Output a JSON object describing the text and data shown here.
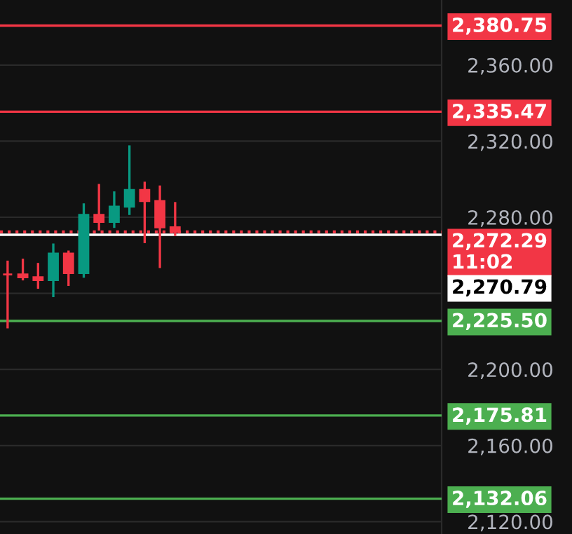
{
  "chart_data": {
    "type": "candlestick",
    "categories": [
      null,
      null,
      null,
      null,
      null,
      null,
      null,
      null,
      null,
      null,
      null,
      null,
      null,
      null,
      null,
      null,
      null,
      null,
      null,
      null,
      null,
      null,
      null,
      null,
      null,
      null,
      null,
      null,
      null
    ],
    "ohlc": [
      [
        2249.9,
        2257.2,
        2221.6,
        2249.9
      ],
      [
        2249.9,
        2258.2,
        2246.8,
        2248.5
      ],
      [
        2248.5,
        2256.0,
        2242.4,
        2247.0
      ],
      [
        2247.0,
        2266.2,
        2238.0,
        2260.9
      ],
      [
        2260.9,
        2262.5,
        2243.9,
        2250.7
      ],
      [
        2250.7,
        2287.3,
        2248.2,
        2281.2
      ],
      [
        2281.2,
        2297.5,
        2273.0,
        2277.6
      ],
      [
        2277.6,
        2293.6,
        2274.4,
        2285.6
      ],
      [
        2285.6,
        2317.8,
        2281.2,
        2294.3
      ],
      [
        2294.3,
        2298.7,
        2266.4,
        2288.5
      ],
      [
        2288.5,
        2296.7,
        2253.3,
        2274.7
      ],
      [
        2274.7,
        2288.0,
        2270.2,
        2272.29
      ],
      null,
      null,
      null,
      null,
      null,
      null,
      null,
      null,
      null,
      null,
      null,
      null,
      null,
      null,
      null,
      null,
      null
    ],
    "colors": [
      "#f23645",
      "#f23645",
      "#f23645",
      "#089981",
      "#f23645",
      "#089981",
      "#f23645",
      "#089981",
      "#089981",
      "#f23645",
      "#f23645",
      "#f23645",
      null,
      null,
      null,
      null,
      null,
      null,
      null,
      null,
      null,
      null,
      null,
      null,
      null,
      null,
      null,
      null,
      null
    ],
    "ylim": [
      2113.5,
      2394.2
    ],
    "yticks": [
      {
        "value": 2120,
        "label": "2,120.00"
      },
      {
        "value": 2160,
        "label": "2,160.00"
      },
      {
        "value": 2200,
        "label": "2,200.00"
      },
      {
        "value": 2240,
        "label": null
      },
      {
        "value": 2280,
        "label": "2,280.00"
      },
      {
        "value": 2320,
        "label": "2,320.00"
      },
      {
        "value": 2360,
        "label": "2,360.00"
      }
    ],
    "grid": "y",
    "tick_labels": "y",
    "ref_lines": [
      {
        "axis": "y",
        "value": 2380.75,
        "label": "2,380.75",
        "color": "#f23645",
        "line_style": "solid"
      },
      {
        "axis": "y",
        "value": 2335.47,
        "label": "2,335.47",
        "color": "#f23645",
        "line_style": "solid"
      },
      {
        "axis": "y",
        "value": 2272.29,
        "label": "2,272.29\n11:02",
        "color": "#f23645",
        "line_style": "dotted"
      },
      {
        "axis": "y",
        "value": 2270.79,
        "label": "2,270.79",
        "color": "#ffffff",
        "line_style": "solid"
      },
      {
        "axis": "y",
        "value": 2225.5,
        "label": "2,225.50",
        "color": "#4caf50",
        "line_style": "solid"
      },
      {
        "axis": "y",
        "value": 2175.81,
        "label": "2,175.81",
        "color": "#4caf50",
        "line_style": "solid"
      },
      {
        "axis": "y",
        "value": 2132.06,
        "label": "2,132.06",
        "color": "#4caf50",
        "line_style": "solid"
      }
    ]
  }
}
